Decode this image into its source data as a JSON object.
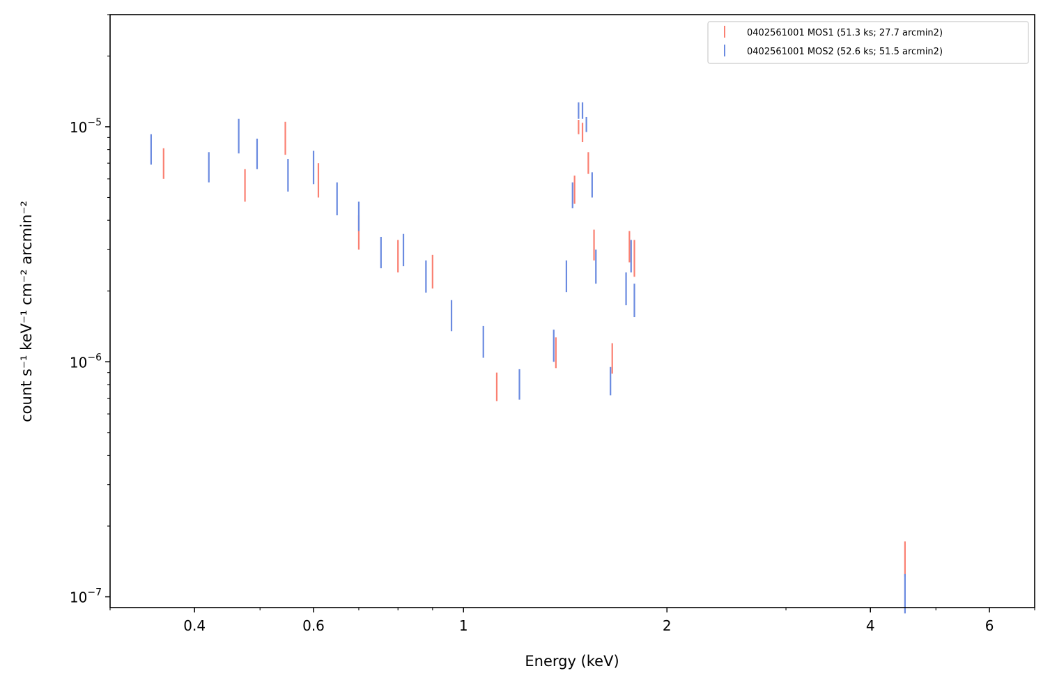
{
  "chart_data": {
    "type": "scatter",
    "xlabel": "Energy (keV)",
    "ylabel": "count s⁻¹ keV⁻¹ cm⁻² arcmin⁻²",
    "xscale": "log",
    "yscale": "log",
    "xlim": [
      0.3,
      7.0
    ],
    "ylim": [
      9e-08,
      3e-05
    ],
    "legend_position": "top-right",
    "x_major_ticks": [
      {
        "value": 0.4,
        "label": "0.4"
      },
      {
        "value": 0.6,
        "label": "0.6"
      },
      {
        "value": 1,
        "label": "1"
      },
      {
        "value": 2,
        "label": "2"
      },
      {
        "value": 4,
        "label": "4"
      },
      {
        "value": 6,
        "label": "6"
      }
    ],
    "x_minor_ticks": [
      0.3,
      0.5,
      0.7,
      0.8,
      0.9,
      3,
      5,
      7
    ],
    "y_major_ticks": [
      {
        "value": 1e-07,
        "base": "10",
        "exp": "−7"
      },
      {
        "value": 1e-06,
        "base": "10",
        "exp": "−6"
      },
      {
        "value": 1e-05,
        "base": "10",
        "exp": "−5"
      }
    ],
    "y_minor_ticks": [
      2e-07,
      3e-07,
      4e-07,
      5e-07,
      6e-07,
      7e-07,
      8e-07,
      9e-07,
      2e-06,
      3e-06,
      4e-06,
      5e-06,
      6e-06,
      7e-06,
      8e-06,
      9e-06,
      2e-05,
      3e-05
    ],
    "series": [
      {
        "name": "0402561001 MOS1 (51.3 ks; 27.7 arcmin2)",
        "color": "#fa8072",
        "points": [
          {
            "x": 0.36,
            "ylo": 6e-06,
            "yhi": 8.1e-06
          },
          {
            "x": 0.475,
            "ylo": 4.8e-06,
            "yhi": 6.6e-06
          },
          {
            "x": 0.545,
            "ylo": 7.6e-06,
            "yhi": 1.05e-05
          },
          {
            "x": 0.61,
            "ylo": 5e-06,
            "yhi": 7e-06
          },
          {
            "x": 0.7,
            "ylo": 3e-06,
            "yhi": 4.2e-06
          },
          {
            "x": 0.8,
            "ylo": 2.4e-06,
            "yhi": 3.3e-06
          },
          {
            "x": 0.9,
            "ylo": 2.05e-06,
            "yhi": 2.85e-06
          },
          {
            "x": 1.12,
            "ylo": 6.8e-07,
            "yhi": 9e-07
          },
          {
            "x": 1.37,
            "ylo": 9.4e-07,
            "yhi": 1.27e-06
          },
          {
            "x": 1.46,
            "ylo": 4.7e-06,
            "yhi": 6.2e-06
          },
          {
            "x": 1.48,
            "ylo": 9.3e-06,
            "yhi": 1.07e-05
          },
          {
            "x": 1.5,
            "ylo": 8.6e-06,
            "yhi": 1.04e-05
          },
          {
            "x": 1.53,
            "ylo": 6.3e-06,
            "yhi": 7.8e-06
          },
          {
            "x": 1.56,
            "ylo": 2.7e-06,
            "yhi": 3.65e-06
          },
          {
            "x": 1.66,
            "ylo": 8.9e-07,
            "yhi": 1.2e-06
          },
          {
            "x": 1.76,
            "ylo": 2.65e-06,
            "yhi": 3.6e-06
          },
          {
            "x": 1.79,
            "ylo": 2.3e-06,
            "yhi": 3.3e-06
          },
          {
            "x": 4.5,
            "ylo": 1.22e-07,
            "yhi": 1.72e-07
          }
        ]
      },
      {
        "name": "0402561001 MOS2 (52.6 ks; 51.5 arcmin2)",
        "color": "#6a8ae0",
        "points": [
          {
            "x": 0.345,
            "ylo": 6.9e-06,
            "yhi": 9.3e-06
          },
          {
            "x": 0.42,
            "ylo": 5.8e-06,
            "yhi": 7.8e-06
          },
          {
            "x": 0.465,
            "ylo": 7.7e-06,
            "yhi": 1.08e-05
          },
          {
            "x": 0.495,
            "ylo": 6.6e-06,
            "yhi": 8.9e-06
          },
          {
            "x": 0.55,
            "ylo": 5.3e-06,
            "yhi": 7.3e-06
          },
          {
            "x": 0.6,
            "ylo": 5.7e-06,
            "yhi": 7.9e-06
          },
          {
            "x": 0.65,
            "ylo": 4.2e-06,
            "yhi": 5.8e-06
          },
          {
            "x": 0.7,
            "ylo": 3.6e-06,
            "yhi": 4.8e-06
          },
          {
            "x": 0.755,
            "ylo": 2.5e-06,
            "yhi": 3.4e-06
          },
          {
            "x": 0.815,
            "ylo": 2.55e-06,
            "yhi": 3.5e-06
          },
          {
            "x": 0.88,
            "ylo": 1.97e-06,
            "yhi": 2.7e-06
          },
          {
            "x": 0.96,
            "ylo": 1.35e-06,
            "yhi": 1.83e-06
          },
          {
            "x": 1.07,
            "ylo": 1.04e-06,
            "yhi": 1.42e-06
          },
          {
            "x": 1.21,
            "ylo": 6.9e-07,
            "yhi": 9.3e-07
          },
          {
            "x": 1.36,
            "ylo": 1e-06,
            "yhi": 1.37e-06
          },
          {
            "x": 1.42,
            "ylo": 1.98e-06,
            "yhi": 2.7e-06
          },
          {
            "x": 1.45,
            "ylo": 4.5e-06,
            "yhi": 5.8e-06
          },
          {
            "x": 1.48,
            "ylo": 1.08e-05,
            "yhi": 1.27e-05
          },
          {
            "x": 1.5,
            "ylo": 1.08e-05,
            "yhi": 1.27e-05
          },
          {
            "x": 1.52,
            "ylo": 9.5e-06,
            "yhi": 1.1e-05
          },
          {
            "x": 1.55,
            "ylo": 5e-06,
            "yhi": 6.4e-06
          },
          {
            "x": 1.57,
            "ylo": 2.15e-06,
            "yhi": 3e-06
          },
          {
            "x": 1.65,
            "ylo": 7.2e-07,
            "yhi": 9.5e-07
          },
          {
            "x": 1.74,
            "ylo": 1.74e-06,
            "yhi": 2.4e-06
          },
          {
            "x": 1.77,
            "ylo": 2.4e-06,
            "yhi": 3.3e-06
          },
          {
            "x": 1.79,
            "ylo": 1.55e-06,
            "yhi": 2.15e-06
          },
          {
            "x": 4.5,
            "ylo": 8.5e-08,
            "yhi": 1.25e-07
          }
        ]
      }
    ]
  }
}
